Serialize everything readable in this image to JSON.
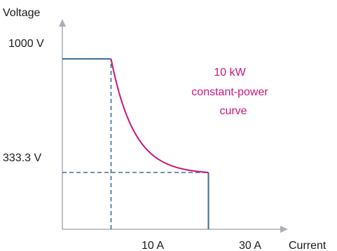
{
  "chart_data": {
    "type": "line",
    "title": "",
    "xlabel": "Current",
    "ylabel": "Voltage",
    "xlim": [
      0,
      40
    ],
    "ylim": [
      0,
      1200
    ],
    "x_ticks": [
      {
        "value": 10,
        "label": "10 A"
      },
      {
        "value": 30,
        "label": "30 A"
      }
    ],
    "y_ticks": [
      {
        "value": 1000,
        "label": "1000 V"
      },
      {
        "value": 333.3,
        "label": "333.3 V"
      }
    ],
    "series": [
      {
        "role": "operating-envelope",
        "color": "#3a6d96",
        "points": [
          [
            0,
            1000
          ],
          [
            10,
            1000
          ],
          [
            10,
            1000
          ],
          [
            30,
            333.3
          ],
          [
            30,
            0
          ]
        ]
      },
      {
        "role": "constant-power-curve",
        "color": "#c8157f",
        "power_w": 10000,
        "x_range": [
          10,
          30
        ]
      }
    ],
    "reference_lines": [
      {
        "orientation": "vertical",
        "x": 10,
        "from_y": 0,
        "to_y": 1000,
        "style": "dashed",
        "color": "#3a6d96"
      },
      {
        "orientation": "horizontal",
        "y": 333.3,
        "from_x": 0,
        "to_x": 30,
        "style": "dashed",
        "color": "#3a6d96"
      }
    ],
    "annotation": {
      "lines": [
        "10 kW",
        "constant-power",
        "curve"
      ],
      "color": "#c8157f"
    },
    "axis_color": "#aab0b5"
  }
}
